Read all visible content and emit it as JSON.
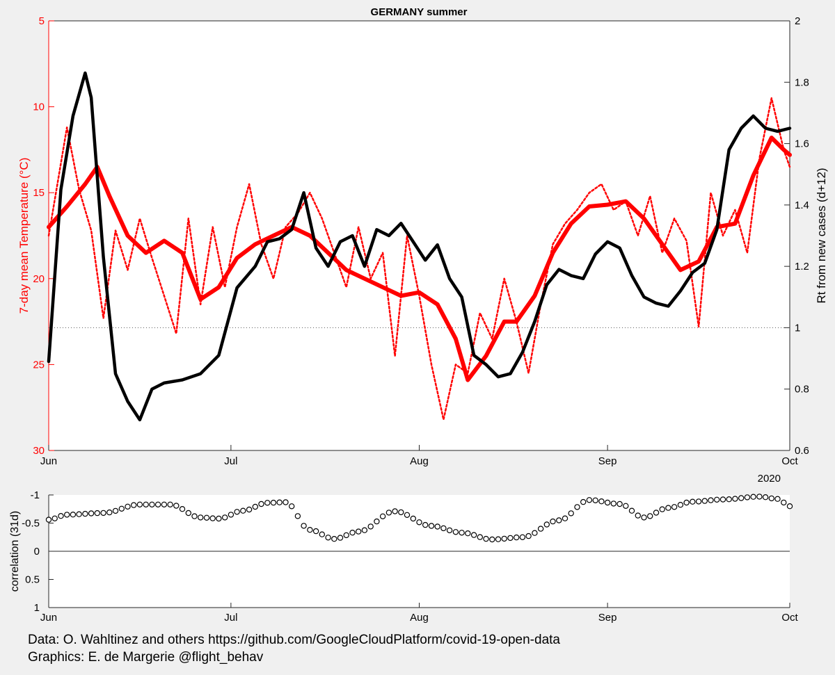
{
  "footer": {
    "data_credit": "Data: O. Wahltinez and others https://github.com/GoogleCloudPlatform/covid-19-open-data",
    "graphics_credit": "Graphics: E. de Margerie @flight_behav"
  },
  "colors": {
    "temperature": "#ff0000",
    "rt": "#000000",
    "plot_bg": "#ffffff",
    "figure_bg": "#f0f0f0"
  },
  "chart_data": [
    {
      "type": "line",
      "title": "GERMANY summer",
      "x_ticks": [
        "Jun",
        "Jul",
        "Aug",
        "Sep",
        "Oct"
      ],
      "x_year_label": "2020",
      "x_range": [
        "2020-06-01",
        "2020-10-01"
      ],
      "y_left": {
        "label": "7-day mean Temperature (°C)",
        "range": [
          5,
          30
        ],
        "reversed": true,
        "ticks": [
          "5",
          "10",
          "15",
          "20",
          "25",
          "30"
        ]
      },
      "y_right": {
        "label": "Rt from new cases (d+12)",
        "range": [
          0.6,
          2
        ],
        "ticks": [
          "0.6",
          "0.8",
          "1",
          "1.2",
          "1.4",
          "1.6",
          "1.8",
          "2"
        ]
      },
      "reference_line": {
        "axis": "right",
        "value": 1,
        "style": "dotted"
      },
      "series": [
        {
          "axis": "left",
          "style": "dotted",
          "color": "#ff0000",
          "x": [
            "2020-06-01",
            "2020-06-04",
            "2020-06-06",
            "2020-06-08",
            "2020-06-10",
            "2020-06-12",
            "2020-06-14",
            "2020-06-16",
            "2020-06-18",
            "2020-06-20",
            "2020-06-22",
            "2020-06-24",
            "2020-06-26",
            "2020-06-28",
            "2020-06-30",
            "2020-07-02",
            "2020-07-04",
            "2020-07-06",
            "2020-07-08",
            "2020-07-10",
            "2020-07-12",
            "2020-07-14",
            "2020-07-16",
            "2020-07-18",
            "2020-07-20",
            "2020-07-22",
            "2020-07-24",
            "2020-07-26",
            "2020-07-28",
            "2020-07-30",
            "2020-08-01",
            "2020-08-03",
            "2020-08-05",
            "2020-08-07",
            "2020-08-09",
            "2020-08-11",
            "2020-08-13",
            "2020-08-15",
            "2020-08-17",
            "2020-08-19",
            "2020-08-21",
            "2020-08-23",
            "2020-08-25",
            "2020-08-27",
            "2020-08-29",
            "2020-08-31",
            "2020-09-02",
            "2020-09-04",
            "2020-09-06",
            "2020-09-08",
            "2020-09-10",
            "2020-09-12",
            "2020-09-14",
            "2020-09-16",
            "2020-09-18",
            "2020-09-20",
            "2020-09-22",
            "2020-09-24",
            "2020-09-26",
            "2020-09-28",
            "2020-09-30",
            "2020-10-01"
          ],
          "y": [
            17.5,
            11.2,
            14.8,
            17.2,
            22.3,
            17.2,
            19.5,
            16.5,
            18.8,
            21.0,
            23.2,
            16.5,
            21.5,
            17.0,
            20.5,
            17.0,
            14.5,
            18.0,
            20.0,
            17.0,
            16.2,
            15.0,
            16.5,
            18.5,
            20.5,
            17.0,
            20.0,
            18.5,
            24.5,
            17.5,
            21.0,
            25.0,
            28.2,
            25.0,
            25.5,
            22.0,
            23.5,
            20.0,
            22.5,
            25.5,
            21.5,
            18.0,
            16.8,
            16.0,
            15.0,
            14.5,
            16.0,
            15.5,
            17.5,
            15.2,
            18.5,
            16.5,
            17.8,
            22.8,
            15.0,
            17.5,
            16.0,
            18.5,
            13.0,
            9.5,
            12.5,
            13.5
          ]
        },
        {
          "axis": "left",
          "style": "solid",
          "color": "#ff0000",
          "x": [
            "2020-06-01",
            "2020-06-04",
            "2020-06-07",
            "2020-06-09",
            "2020-06-11",
            "2020-06-14",
            "2020-06-17",
            "2020-06-20",
            "2020-06-23",
            "2020-06-26",
            "2020-06-29",
            "2020-07-02",
            "2020-07-05",
            "2020-07-08",
            "2020-07-11",
            "2020-07-14",
            "2020-07-17",
            "2020-07-20",
            "2020-07-23",
            "2020-07-26",
            "2020-07-29",
            "2020-08-01",
            "2020-08-04",
            "2020-08-07",
            "2020-08-09",
            "2020-08-12",
            "2020-08-15",
            "2020-08-17",
            "2020-08-20",
            "2020-08-23",
            "2020-08-26",
            "2020-08-29",
            "2020-09-01",
            "2020-09-04",
            "2020-09-07",
            "2020-09-10",
            "2020-09-13",
            "2020-09-16",
            "2020-09-19",
            "2020-09-22",
            "2020-09-25",
            "2020-09-28",
            "2020-09-30",
            "2020-10-01"
          ],
          "y": [
            17.0,
            15.8,
            14.5,
            13.5,
            15.2,
            17.5,
            18.5,
            17.8,
            18.5,
            21.2,
            20.5,
            18.8,
            18.0,
            17.5,
            17.0,
            17.5,
            18.5,
            19.5,
            20.0,
            20.5,
            21.0,
            20.8,
            21.5,
            23.5,
            25.9,
            24.5,
            22.5,
            22.5,
            21.0,
            18.5,
            16.8,
            15.8,
            15.7,
            15.5,
            16.5,
            18.0,
            19.5,
            19.0,
            17.0,
            16.8,
            14.0,
            11.8,
            12.5,
            12.8
          ]
        },
        {
          "axis": "right",
          "style": "solid",
          "color": "#000000",
          "x": [
            "2020-06-01",
            "2020-06-03",
            "2020-06-05",
            "2020-06-07",
            "2020-06-08",
            "2020-06-10",
            "2020-06-12",
            "2020-06-14",
            "2020-06-16",
            "2020-06-18",
            "2020-06-20",
            "2020-06-23",
            "2020-06-26",
            "2020-06-29",
            "2020-07-02",
            "2020-07-05",
            "2020-07-07",
            "2020-07-09",
            "2020-07-11",
            "2020-07-13",
            "2020-07-15",
            "2020-07-17",
            "2020-07-19",
            "2020-07-21",
            "2020-07-23",
            "2020-07-25",
            "2020-07-27",
            "2020-07-29",
            "2020-07-31",
            "2020-08-02",
            "2020-08-04",
            "2020-08-06",
            "2020-08-08",
            "2020-08-10",
            "2020-08-12",
            "2020-08-14",
            "2020-08-16",
            "2020-08-18",
            "2020-08-20",
            "2020-08-22",
            "2020-08-24",
            "2020-08-26",
            "2020-08-28",
            "2020-08-30",
            "2020-09-01",
            "2020-09-03",
            "2020-09-05",
            "2020-09-07",
            "2020-09-09",
            "2020-09-11",
            "2020-09-13",
            "2020-09-15",
            "2020-09-17",
            "2020-09-19",
            "2020-09-21",
            "2020-09-23",
            "2020-09-25",
            "2020-09-27",
            "2020-09-29",
            "2020-10-01"
          ],
          "y": [
            0.89,
            1.45,
            1.69,
            1.83,
            1.75,
            1.23,
            0.85,
            0.76,
            0.7,
            0.8,
            0.82,
            0.83,
            0.85,
            0.91,
            1.13,
            1.2,
            1.28,
            1.29,
            1.32,
            1.44,
            1.26,
            1.2,
            1.28,
            1.3,
            1.2,
            1.32,
            1.3,
            1.34,
            1.28,
            1.22,
            1.27,
            1.16,
            1.1,
            0.91,
            0.88,
            0.84,
            0.85,
            0.92,
            1.02,
            1.14,
            1.19,
            1.17,
            1.16,
            1.24,
            1.28,
            1.26,
            1.17,
            1.1,
            1.08,
            1.07,
            1.12,
            1.18,
            1.21,
            1.32,
            1.58,
            1.65,
            1.69,
            1.65,
            1.64,
            1.65
          ]
        }
      ]
    },
    {
      "type": "scatter",
      "title": "",
      "ylabel": "correlation (31d)",
      "y_range": [
        -1,
        1
      ],
      "y_reversed": true,
      "y_ticks": [
        "-1",
        "-0.5",
        "0",
        "0.5",
        "1"
      ],
      "x_ticks": [
        "Jun",
        "Jul",
        "Aug",
        "Sep",
        "Oct"
      ],
      "x_year_label": "2020",
      "reference_line": {
        "value": 0,
        "style": "solid"
      },
      "knots": {
        "x": [
          "2020-06-01",
          "2020-06-04",
          "2020-06-10",
          "2020-06-16",
          "2020-06-21",
          "2020-06-26",
          "2020-06-29",
          "2020-07-03",
          "2020-07-07",
          "2020-07-10",
          "2020-07-14",
          "2020-07-18",
          "2020-07-22",
          "2020-07-28",
          "2020-08-03",
          "2020-08-08",
          "2020-08-13",
          "2020-08-18",
          "2020-08-24",
          "2020-08-29",
          "2020-09-03",
          "2020-09-07",
          "2020-09-11",
          "2020-09-15",
          "2020-09-20",
          "2020-09-26",
          "2020-09-29",
          "2020-10-01"
        ],
        "y": [
          -0.56,
          -0.65,
          -0.68,
          -0.83,
          -0.83,
          -0.6,
          -0.58,
          -0.72,
          -0.86,
          -0.87,
          -0.38,
          -0.22,
          -0.35,
          -0.71,
          -0.45,
          -0.33,
          -0.21,
          -0.25,
          -0.55,
          -0.91,
          -0.84,
          -0.6,
          -0.77,
          -0.88,
          -0.92,
          -0.97,
          -0.93,
          -0.8
        ]
      }
    }
  ]
}
